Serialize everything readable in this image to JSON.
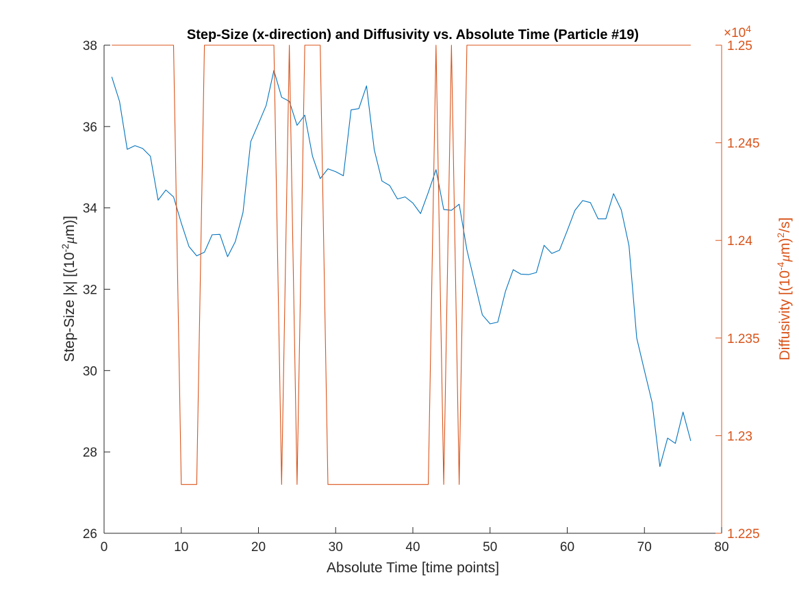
{
  "chart_data": {
    "type": "line",
    "title": "Step-Size (x-direction) and Diffusivity vs. Absolute Time (Particle #19)",
    "xlabel": "Absolute Time [time points]",
    "ylabel_left": "Step-Size |x| [(10",
    "ylabel_left_sup": "-2",
    "ylabel_left_mu": "μ",
    "ylabel_left_tail": "m)]",
    "ylabel_right": "Diffusivity [(10",
    "ylabel_right_sup": "-4",
    "ylabel_right_mu": "μ",
    "ylabel_right_mid": "m)",
    "ylabel_right_sup2": "2",
    "ylabel_right_tail": "/s]",
    "right_multiplier": "×10",
    "right_multiplier_exp": "4",
    "xlim": [
      0,
      80
    ],
    "ylim_left": [
      26,
      38
    ],
    "ylim_right": [
      1.225,
      1.25
    ],
    "xticks": [
      0,
      10,
      20,
      30,
      40,
      50,
      60,
      70,
      80
    ],
    "yticks_left": [
      26,
      28,
      30,
      32,
      34,
      36,
      38
    ],
    "yticks_right": [
      "1.225",
      "1.23",
      "1.235",
      "1.24",
      "1.245",
      "1.25"
    ],
    "colors": {
      "left": "#0072BD",
      "right": "#D95319",
      "axis": "#262626"
    },
    "grid": false,
    "series": [
      {
        "axis": "left",
        "x": [
          1,
          2,
          3,
          4,
          5,
          6,
          7,
          8,
          9,
          10,
          11,
          12,
          13,
          14,
          15,
          16,
          17,
          18,
          19,
          20,
          21,
          22,
          23,
          24,
          25,
          26,
          27,
          28,
          29,
          30,
          31,
          32,
          33,
          34,
          35,
          36,
          37,
          38,
          39,
          40,
          41,
          42,
          43,
          44,
          45,
          46,
          47,
          48,
          49,
          50,
          51,
          52,
          53,
          54,
          55,
          56,
          57,
          58,
          59,
          60,
          61,
          62,
          63,
          64,
          65,
          66,
          67,
          68,
          69,
          70,
          71,
          72,
          73,
          74,
          75,
          76
        ],
        "values": [
          37.22,
          36.62,
          35.44,
          35.53,
          35.46,
          35.27,
          34.19,
          34.44,
          34.27,
          33.63,
          33.05,
          32.82,
          32.91,
          33.34,
          33.35,
          32.8,
          33.17,
          33.89,
          35.63,
          36.07,
          36.52,
          37.38,
          36.72,
          36.62,
          36.03,
          36.28,
          35.27,
          34.72,
          34.96,
          34.89,
          34.79,
          36.41,
          36.44,
          37.0,
          35.43,
          34.66,
          34.55,
          34.22,
          34.27,
          34.12,
          33.86,
          34.38,
          34.94,
          33.96,
          33.94,
          34.09,
          32.97,
          32.17,
          31.37,
          31.15,
          31.19,
          31.95,
          32.48,
          32.37,
          32.36,
          32.41,
          33.08,
          32.88,
          32.96,
          33.44,
          33.94,
          34.18,
          34.13,
          33.73,
          33.73,
          34.35,
          33.95,
          33.07,
          30.8,
          30.0,
          29.21,
          27.64,
          28.34,
          28.21,
          28.98,
          28.27
        ]
      },
      {
        "axis": "right",
        "x": [
          1,
          9,
          10,
          12,
          13,
          22,
          23,
          24,
          25,
          26,
          27,
          28,
          29,
          42,
          43,
          44,
          45,
          46,
          47,
          76
        ],
        "values": [
          1.25,
          1.25,
          1.2275,
          1.2275,
          1.25,
          1.25,
          1.2275,
          1.25,
          1.2275,
          1.25,
          1.25,
          1.25,
          1.2275,
          1.2275,
          1.25,
          1.2275,
          1.25,
          1.2275,
          1.25,
          1.25
        ]
      }
    ]
  }
}
